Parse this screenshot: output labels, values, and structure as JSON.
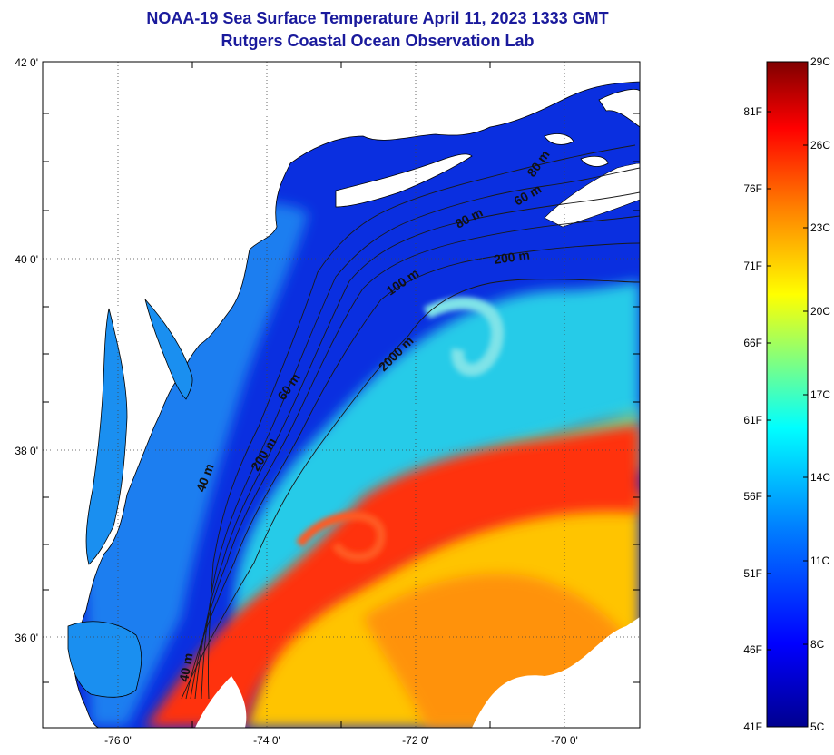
{
  "title": {
    "line1": "NOAA-19 Sea Surface Temperature April 11, 2023 1333 GMT",
    "line2": "Rutgers Coastal Ocean Observation Lab"
  },
  "axes": {
    "lon_labels": [
      "-76 0'",
      "-74 0'",
      "-72 0'",
      "-70 0'"
    ],
    "lat_labels": [
      "42 0'",
      "40 0'",
      "38 0'",
      "36 0'"
    ]
  },
  "contours": {
    "labels": [
      "80 m",
      "60 m",
      "80 m",
      "200 m",
      "100 m",
      "2000 m",
      "60 m",
      "200 m",
      "40 m",
      "40 m"
    ]
  },
  "colorbar": {
    "f_labels": [
      "81F",
      "76F",
      "71F",
      "66F",
      "61F",
      "56F",
      "51F",
      "46F",
      "41F"
    ],
    "c_labels": [
      "29C",
      "26C",
      "23C",
      "20C",
      "17C",
      "14C",
      "11C",
      "8C",
      "5C"
    ],
    "colors": [
      "#00008f",
      "#0000ff",
      "#0080ff",
      "#00ffff",
      "#80ff80",
      "#ffff00",
      "#ff8000",
      "#ff0000",
      "#800000"
    ]
  },
  "colors": {
    "title": "#1a1a9c",
    "land": "#ffffff",
    "cold_water": "#0a2fe0",
    "shelf_water": "#1f86ee",
    "slope_water": "#2fd6f0",
    "warm_core": "#ff3a10",
    "warm_edge": "#ffb000"
  }
}
